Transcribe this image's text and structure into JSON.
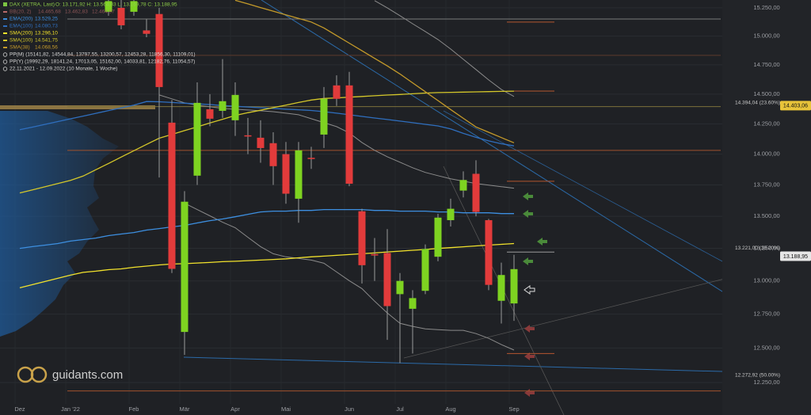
{
  "chart_data": {
    "type": "candlestick",
    "title": "DAX (XETRA, Last)",
    "ohlc_label": "O: 13.171,92  H: 13.564,83  L: 13.169,78  C: 13.188,95",
    "categories": [
      "Dez",
      null,
      null,
      null,
      "Jan '22",
      null,
      null,
      null,
      null,
      "Feb",
      null,
      null,
      null,
      "Mär",
      null,
      null,
      null,
      "Apr",
      null,
      null,
      null,
      "Mai",
      null,
      null,
      null,
      null,
      "Jun",
      null,
      null,
      null,
      "Jul",
      null,
      null,
      null,
      "Aug",
      null,
      null,
      null,
      null,
      "Sep"
    ],
    "open": [
      null,
      null,
      null,
      null,
      null,
      null,
      null,
      15215,
      15250,
      15215,
      15050,
      15195,
      14260,
      12618,
      13825,
      14372,
      14359,
      14280,
      14155,
      14135,
      14090,
      14000,
      13640,
      13970,
      14161,
      14574,
      14574,
      13540,
      13205,
      13214,
      12900,
      12790,
      12925,
      13185,
      13470,
      13705,
      13840,
      13470,
      12850,
      12830
    ],
    "high": [
      null,
      null,
      null,
      null,
      null,
      null,
      null,
      15400,
      15320,
      15380,
      15150,
      15250,
      14450,
      13700,
      14600,
      14500,
      14800,
      14600,
      14300,
      14280,
      14180,
      14100,
      14100,
      14060,
      14560,
      14660,
      14690,
      13560,
      13330,
      13400,
      13060,
      12930,
      13280,
      13520,
      13640,
      13860,
      13950,
      13480,
      13140,
      13200
    ],
    "low": [
      null,
      null,
      null,
      null,
      null,
      null,
      null,
      15180,
      15060,
      15180,
      14990,
      13810,
      13060,
      12450,
      13750,
      14230,
      14300,
      14150,
      14000,
      13930,
      13750,
      13600,
      13450,
      13880,
      14050,
      14400,
      13740,
      12980,
      13000,
      12560,
      12390,
      12460,
      12900,
      13150,
      13420,
      13650,
      13500,
      12930,
      12680,
      12700
    ],
    "close": [
      null,
      null,
      null,
      null,
      null,
      null,
      null,
      15310,
      15095,
      15310,
      15020,
      14560,
      13092,
      13616,
      14426,
      14293,
      14440,
      14493,
      14145,
      14050,
      13902,
      13680,
      14031,
      13960,
      14460,
      14460,
      13760,
      13120,
      13195,
      12810,
      13000,
      12870,
      13245,
      13490,
      13560,
      13790,
      13535,
      12970,
      13045,
      13090
    ],
    "up_color": "#7ed321",
    "down_color": "#e23b3b",
    "bands": {
      "name": "BB(20, 2)",
      "labels": [
        "14.465,68",
        "13.462,83",
        "12.464,97"
      ],
      "color": "#8b8b8b",
      "legend_color": "#b86a6a",
      "upper": [
        null,
        null,
        null,
        null,
        null,
        null,
        null,
        null,
        null,
        null,
        null,
        null,
        null,
        null,
        null,
        null,
        null,
        null,
        null,
        null,
        null,
        null,
        null,
        null,
        null,
        null,
        null,
        null,
        15314,
        15250,
        15180,
        15109,
        15040,
        14970,
        14887,
        14798,
        14710,
        14621,
        14540,
        14480
      ],
      "middle": [
        null,
        null,
        null,
        null,
        null,
        null,
        null,
        null,
        null,
        null,
        null,
        14493,
        14460,
        14426,
        14406,
        14393,
        14379,
        14372,
        14366,
        14359,
        14352,
        14339,
        14326,
        14293,
        14260,
        14227,
        14175,
        14096,
        14031,
        13979,
        13934,
        13889,
        13851,
        13825,
        13800,
        13781,
        13761,
        13749,
        13736,
        13724
      ],
      "lower": [
        null,
        null,
        null,
        null,
        null,
        null,
        null,
        null,
        null,
        null,
        null,
        null,
        null,
        13604,
        13554,
        13504,
        13454,
        13411,
        13336,
        13263,
        13208,
        13184,
        13172,
        13159,
        13135,
        13068,
        13002,
        12942,
        12847,
        12759,
        12682,
        12659,
        12641,
        12635,
        12630,
        12630,
        12606,
        12571,
        12525,
        12485
      ]
    },
    "series": [
      {
        "name": "EMA(200)",
        "label": "13.529,25",
        "color": "#3d8fe0",
        "values": [
          13250,
          13263,
          13275,
          13287,
          13306,
          13318,
          13330,
          13349,
          13361,
          13373,
          13392,
          13404,
          13417,
          13429,
          13448,
          13466,
          13479,
          13497,
          13516,
          13535,
          13541,
          13541,
          13547,
          13547,
          13554,
          13554,
          13554,
          13554,
          13547,
          13547,
          13541,
          13541,
          13541,
          13535,
          13535,
          13528,
          13528,
          13528,
          13522,
          13522
        ]
      },
      {
        "name": "EMA(100)",
        "label": "14.080,73",
        "color": "#2f6fbf",
        "values": [
          14201,
          14223,
          14246,
          14269,
          14292,
          14315,
          14338,
          14361,
          14384,
          14407,
          14437,
          14435,
          14429,
          14423,
          14418,
          14412,
          14403,
          14397,
          14391,
          14385,
          14379,
          14373,
          14368,
          14362,
          14352,
          14339,
          14326,
          14312,
          14299,
          14286,
          14273,
          14260,
          14246,
          14233,
          14208,
          14171,
          14138,
          14109,
          14085,
          14068
        ]
      },
      {
        "name": "SMA(200)",
        "label": "13.296,10",
        "color": "#f2e22c",
        "values": [
          12948,
          12972,
          12996,
          13020,
          13044,
          13065,
          13074,
          13086,
          13092,
          13104,
          13113,
          13122,
          13129,
          13132,
          13137,
          13141,
          13147,
          13150,
          13155,
          13159,
          13164,
          13169,
          13177,
          13184,
          13190,
          13196,
          13202,
          13208,
          13214,
          13222,
          13228,
          13235,
          13241,
          13249,
          13255,
          13262,
          13269,
          13275,
          13281,
          13287
        ]
      },
      {
        "name": "SMA(100)",
        "label": "14.541,75",
        "color": "#d4c72a",
        "values": [
          13686,
          13711,
          13736,
          13762,
          13787,
          13822,
          13873,
          13924,
          13976,
          14028,
          14080,
          14131,
          14162,
          14194,
          14225,
          14257,
          14288,
          14320,
          14343,
          14364,
          14386,
          14407,
          14429,
          14450,
          14463,
          14468,
          14474,
          14480,
          14486,
          14492,
          14497,
          14503,
          14509,
          14513,
          14515,
          14517,
          14519,
          14521,
          14523,
          14525
        ]
      },
      {
        "name": "SMA(38)",
        "label": "14.068,56",
        "color": "#c49a2a",
        "values": [
          null,
          null,
          null,
          null,
          null,
          null,
          null,
          null,
          null,
          null,
          null,
          null,
          null,
          null,
          null,
          null,
          null,
          15317,
          15285,
          15252,
          15220,
          15188,
          15156,
          15124,
          15072,
          15005,
          14938,
          14872,
          14806,
          14741,
          14672,
          14596,
          14520,
          14445,
          14370,
          14296,
          14224,
          14180,
          14136,
          14093
        ]
      }
    ],
    "notes": [
      "PP(M)  (15141,82, 14544,84, 13797,55, 13200,57, 12453,28, 11856,30, 11109,01)",
      "PP(Y)  (19992,29, 18141,24, 17013,05, 15162,00, 14033,81, 12182,76, 11054,57)",
      "22.11.2021 - 12.09.2022  (10 Monate, 1 Woche)"
    ],
    "levels": [
      {
        "value": 15151,
        "color": "#7a7a7a",
        "extent": "full"
      },
      {
        "value": 15124,
        "color": "#b5562f",
        "extent": "short"
      },
      {
        "value": 14832,
        "color": "#5e3a2c",
        "extent": "full"
      },
      {
        "value": 14526,
        "color": "#b5562f",
        "extent": "short"
      },
      {
        "value": 14394.04,
        "label": "14.394,04 (23.60%)",
        "color": "#7d703a",
        "extent": "full"
      },
      {
        "value": 14031,
        "color": "#a0522d",
        "extent": "full"
      },
      {
        "value": 13780,
        "color": "#b5562f",
        "extent": "short"
      },
      {
        "value": 13221,
        "label": "13.221,00 (38.20%)",
        "color": "#9a9a9a",
        "extent": "short"
      },
      {
        "value": 12460,
        "color": "#b5562f",
        "extent": "short"
      },
      {
        "value": 12272.92,
        "label": "12.272,92 (50.00%)",
        "color": "#3a6a9a"
      },
      {
        "value": 12190,
        "color": "#a0522d",
        "extent": "full"
      }
    ],
    "badges": [
      {
        "value": 14403.06,
        "label": "14.403,06",
        "color": "#e8c43a"
      },
      {
        "value": 13188.95,
        "label": "13.188,95",
        "color": "#e6e6e6"
      }
    ],
    "ylim": [
      12020,
      15320
    ],
    "log": true,
    "grid": true,
    "yticks": [
      {
        "value": 15250,
        "label": "15.250,00"
      },
      {
        "value": 15000,
        "label": "15.000,00"
      },
      {
        "value": 14750,
        "label": "14.750,00"
      },
      {
        "value": 14500,
        "label": "14.500,00"
      },
      {
        "value": 14250,
        "label": "14.250,00"
      },
      {
        "value": 14000,
        "label": "14.000,00"
      },
      {
        "value": 13750,
        "label": "13.750,00"
      },
      {
        "value": 13500,
        "label": "13.500,00"
      },
      {
        "value": 13250,
        "label": "13.250,00"
      },
      {
        "value": 13000,
        "label": "13.000,00"
      },
      {
        "value": 12750,
        "label": "12.750,00"
      },
      {
        "value": 12500,
        "label": "12.500,00"
      },
      {
        "value": 12250,
        "label": "12.250,00"
      }
    ],
    "brand": "guidants.com"
  }
}
